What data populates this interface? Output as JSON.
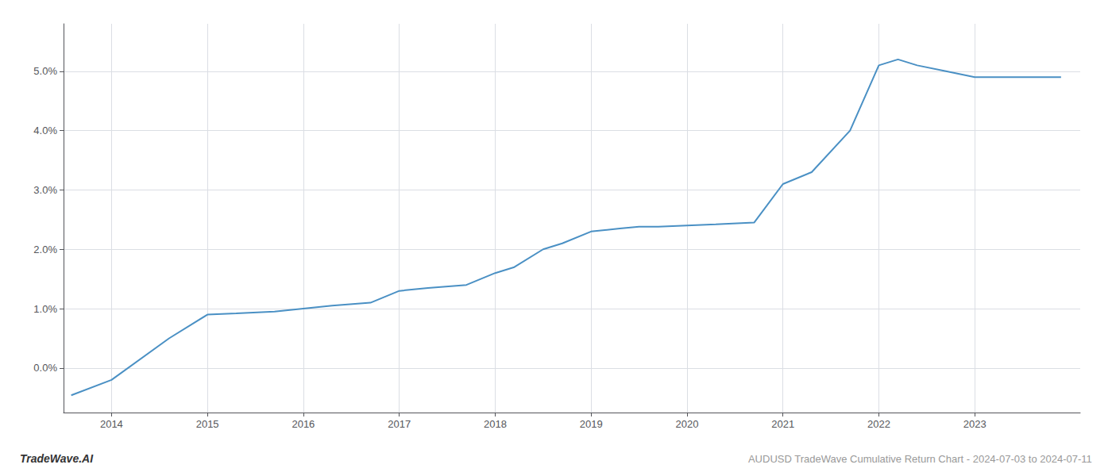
{
  "chart_data": {
    "type": "line",
    "title": "AUDUSD TradeWave Cumulative Return Chart - 2024-07-03 to 2024-07-11",
    "annotations": [
      "TradeWave.AI"
    ],
    "color": "#4a90c4",
    "x": [
      2013.58,
      2014.0,
      2014.6,
      2015.0,
      2015.3,
      2015.7,
      2016.0,
      2016.3,
      2016.7,
      2017.0,
      2017.3,
      2017.7,
      2018.0,
      2018.2,
      2018.5,
      2018.7,
      2019.0,
      2019.3,
      2019.5,
      2019.7,
      2020.0,
      2020.3,
      2020.7,
      2021.0,
      2021.3,
      2021.7,
      2022.0,
      2022.2,
      2022.4,
      2022.7,
      2023.0,
      2023.5,
      2023.9
    ],
    "values": [
      -0.0046,
      -0.002,
      0.005,
      0.009,
      0.0092,
      0.0095,
      0.01,
      0.0105,
      0.011,
      0.013,
      0.0135,
      0.014,
      0.016,
      0.017,
      0.02,
      0.021,
      0.023,
      0.0235,
      0.0238,
      0.0238,
      0.024,
      0.0242,
      0.0245,
      0.031,
      0.033,
      0.04,
      0.051,
      0.052,
      0.051,
      0.05,
      0.049,
      0.049,
      0.049
    ],
    "xlim": [
      2013.5,
      2024.1
    ],
    "ylim": [
      -0.0075,
      0.058
    ],
    "xticks": [
      2014,
      2015,
      2016,
      2017,
      2018,
      2019,
      2020,
      2021,
      2022,
      2023
    ],
    "yticks": [
      {
        "value": 0.0,
        "label": "0.0%"
      },
      {
        "value": 0.01,
        "label": "1.0%"
      },
      {
        "value": 0.02,
        "label": "2.0%"
      },
      {
        "value": 0.03,
        "label": "3.0%"
      },
      {
        "value": 0.04,
        "label": "4.0%"
      },
      {
        "value": 0.05,
        "label": "5.0%"
      }
    ],
    "grid": true
  }
}
